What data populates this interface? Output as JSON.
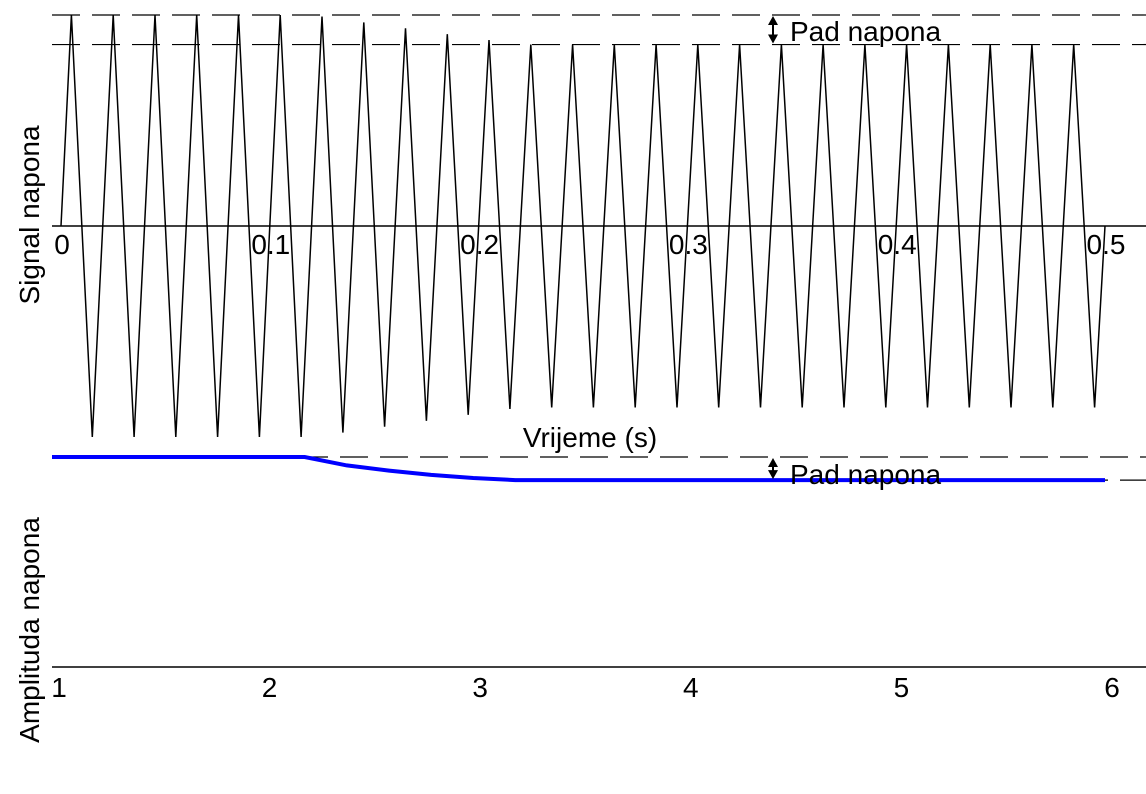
{
  "chart_data": [
    {
      "type": "line",
      "xlabel": "Vrijeme (s)",
      "ylabel": "Signal napona",
      "xlim": [
        0,
        0.5
      ],
      "x_ticks": [
        "0",
        "0.1",
        "0.2",
        "0.3",
        "0.4",
        "0.5"
      ],
      "x_tick_values": [
        0,
        0.1,
        0.2,
        0.3,
        0.4,
        0.5
      ],
      "ylim": [
        -1,
        1.1
      ],
      "waveform": "triangle",
      "frequency_hz": 50,
      "duration_s": 0.5,
      "amplitude_before": 1.0,
      "amplitude_after": 0.86,
      "drop_start_s": 0.12,
      "drop_end_s": 0.22,
      "reference_levels": [
        1.0,
        0.86
      ],
      "series_color": "#000000",
      "annotation": "Pad napona",
      "grid": false
    },
    {
      "type": "line",
      "xlabel": "",
      "ylabel": "Amplituda napona",
      "xlim": [
        1,
        6
      ],
      "x_ticks": [
        "1",
        "2",
        "3",
        "4",
        "5",
        "6"
      ],
      "x_tick_values": [
        1,
        2,
        3,
        4,
        5,
        6
      ],
      "ylim": [
        0,
        1.1
      ],
      "series": [
        {
          "x": [
            1,
            2.2,
            2.4,
            2.6,
            2.8,
            3.0,
            3.2,
            4.0,
            5.0,
            6.0
          ],
          "values": [
            1.0,
            1.0,
            0.96,
            0.935,
            0.915,
            0.9,
            0.89,
            0.89,
            0.89,
            0.89
          ]
        }
      ],
      "reference_levels": [
        1.0,
        0.89
      ],
      "series_color": "#0000ff",
      "annotation": "Pad napona",
      "grid": false
    }
  ]
}
